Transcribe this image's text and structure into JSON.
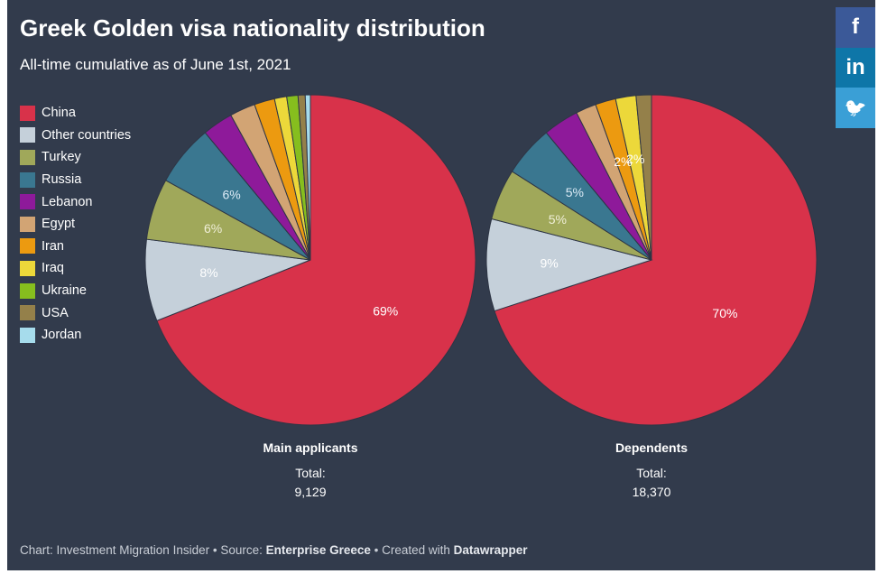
{
  "chart_data": [
    {
      "type": "pie",
      "title": "Greek Golden visa nationality distribution",
      "subtitle": "All-time cumulative as of June 1st, 2021",
      "name": "Main applicants",
      "total_label": "Total:",
      "total": "9,129",
      "categories": [
        "China",
        "Other countries",
        "Turkey",
        "Russia",
        "Lebanon",
        "Egypt",
        "Iran",
        "Iraq",
        "Ukraine",
        "USA",
        "Jordan"
      ],
      "values": [
        69,
        8,
        6,
        6,
        3,
        2.5,
        2,
        1.2,
        1.1,
        0.7,
        0.5
      ],
      "labels": [
        "69%",
        "8%",
        "6%",
        "6%",
        "",
        "",
        "",
        "",
        "",
        "",
        ""
      ]
    },
    {
      "type": "pie",
      "name": "Dependents",
      "total_label": "Total:",
      "total": "18,370",
      "categories": [
        "China",
        "Other countries",
        "Turkey",
        "Russia",
        "Lebanon",
        "Egypt",
        "Iran",
        "Iraq",
        "Ukraine",
        "USA",
        "Jordan"
      ],
      "values": [
        70,
        9,
        5,
        5,
        3.5,
        2,
        2,
        2,
        0,
        1.5,
        0
      ],
      "labels": [
        "70%",
        "9%",
        "5%",
        "5%",
        "",
        "",
        "2%",
        "2%",
        "",
        "",
        ""
      ]
    }
  ],
  "legend": {
    "placement": "left",
    "items": [
      {
        "label": "China",
        "color": "#d8324a"
      },
      {
        "label": "Other countries",
        "color": "#c5d0da"
      },
      {
        "label": "Turkey",
        "color": "#a0a85a"
      },
      {
        "label": "Russia",
        "color": "#3a7790"
      },
      {
        "label": "Lebanon",
        "color": "#8e1a9a"
      },
      {
        "label": "Egypt",
        "color": "#d2a474"
      },
      {
        "label": "Iran",
        "color": "#ec9a10"
      },
      {
        "label": "Iraq",
        "color": "#ecd83a"
      },
      {
        "label": "Ukraine",
        "color": "#86be1e"
      },
      {
        "label": "USA",
        "color": "#94804a"
      },
      {
        "label": "Jordan",
        "color": "#a6dcec"
      }
    ]
  },
  "footer": {
    "prefix": "Chart: Investment Migration Insider • Source: ",
    "source": "Enterprise Greece",
    "mid": " • Created with ",
    "tool": "Datawrapper"
  },
  "social": [
    {
      "icon": "facebook-icon",
      "glyph": "f",
      "color": "#3b5998"
    },
    {
      "icon": "linkedin-icon",
      "glyph": "in",
      "color": "#0e76a8"
    },
    {
      "icon": "twitter-icon",
      "glyph": "🐦",
      "color": "#3a9fd6"
    }
  ]
}
